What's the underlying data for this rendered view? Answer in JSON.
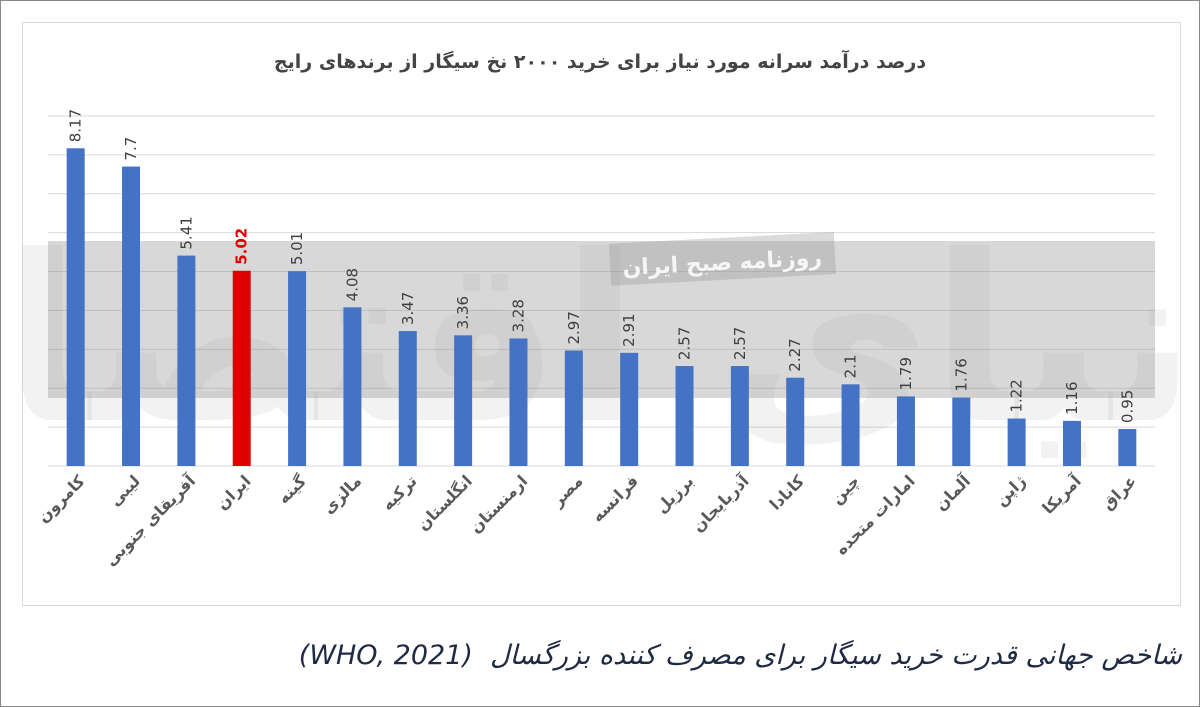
{
  "chart_data": {
    "type": "bar",
    "title": "درصد درآمد سرانه مورد نیاز برای خرید ۲۰۰۰ نخ سیگار از برندهای رایج",
    "categories": [
      "کامرون",
      "لیبی",
      "آفریقای جنوبی",
      "ایران",
      "گینه",
      "مالزی",
      "ترکیه",
      "انگلستان",
      "ارمنستان",
      "مصر",
      "فرانسه",
      "برزیل",
      "آذربایجان",
      "کانادا",
      "چین",
      "امارات متحده",
      "آلمان",
      "ژاپن",
      "آمریکا",
      "عراق"
    ],
    "values": [
      8.17,
      7.7,
      5.41,
      5.02,
      5.01,
      4.08,
      3.47,
      3.36,
      3.28,
      2.97,
      2.91,
      2.57,
      2.57,
      2.27,
      2.1,
      1.79,
      1.76,
      1.22,
      1.16,
      0.95
    ],
    "value_labels": [
      "8.17",
      "7.7",
      "5.41",
      "5.02",
      "5.01",
      "4.08",
      "3.47",
      "3.36",
      "3.28",
      "2.97",
      "2.91",
      "2.57",
      "2.57",
      "2.27",
      "2.1",
      "1.79",
      "1.76",
      "1.22",
      "1.16",
      "0.95"
    ],
    "highlight_category": "ایران",
    "ylim": [
      0,
      9
    ],
    "grid": true,
    "xlabel": "",
    "ylabel": "",
    "colors": {
      "bar": "#4472c4",
      "highlight": "#e00000",
      "grid": "#d9d9d9"
    }
  },
  "watermark": {
    "text": "روزنامه صبح ایران",
    "logo": "دنیای اقتصاد"
  },
  "caption": "شاخص جهانی قدرت خرید سیگار برای مصرف کننده بزرگسال  (WHO, 2021)"
}
